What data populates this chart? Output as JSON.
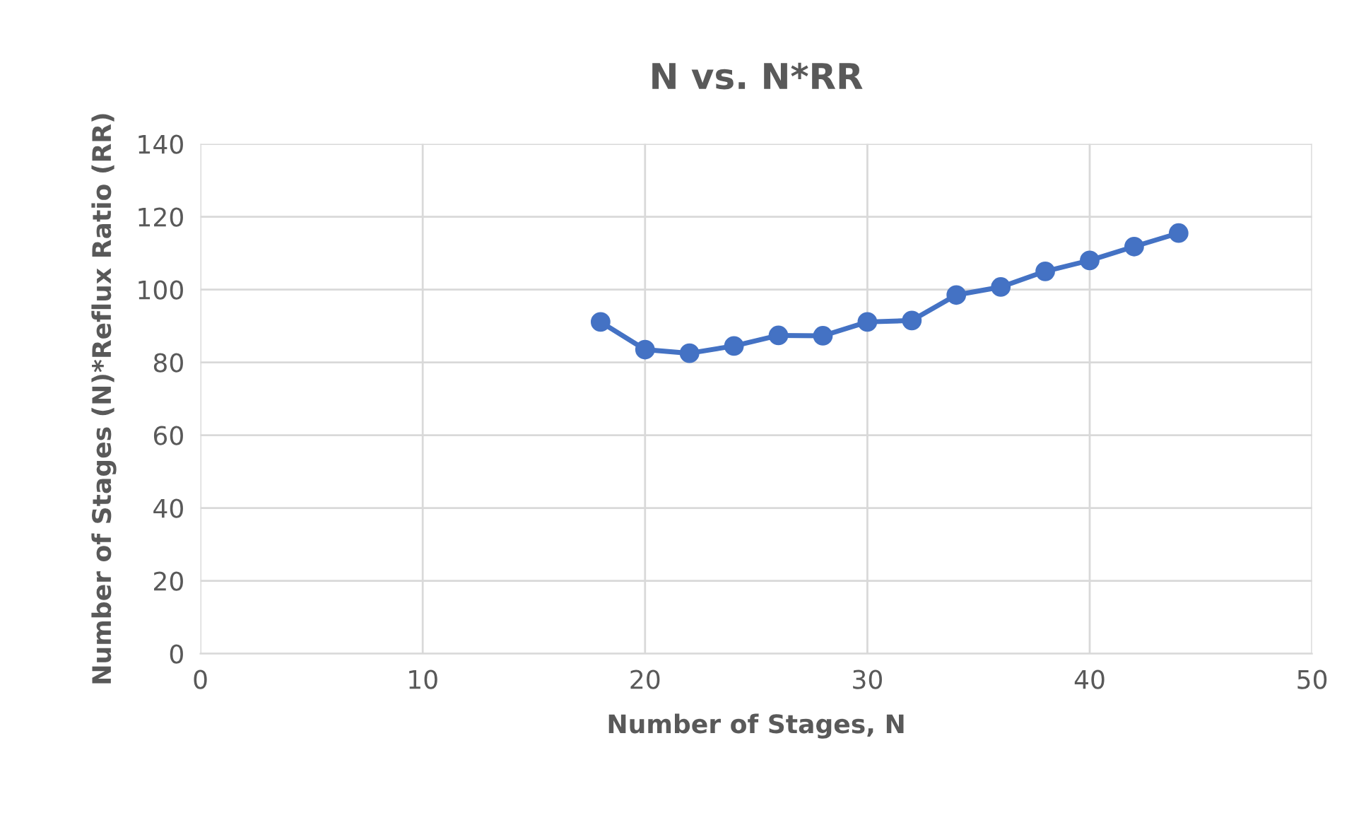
{
  "chart_data": {
    "type": "line",
    "title": "N vs. N*RR",
    "xlabel": "Number of Stages, N",
    "ylabel": "Number of Stages (N)*Reflux Ratio (RR)",
    "x": [
      18,
      20,
      22,
      24,
      26,
      28,
      30,
      32,
      34,
      36,
      38,
      40,
      42,
      44
    ],
    "series": [
      {
        "color": "#4472c4",
        "values": [
          91.1,
          83.5,
          82.5,
          84.5,
          87.4,
          87.3,
          91.1,
          91.5,
          98.5,
          100.7,
          105,
          108,
          111.8,
          115.5
        ]
      }
    ],
    "xlim": [
      0,
      50
    ],
    "xticks": [
      0,
      10,
      20,
      30,
      40,
      50
    ],
    "ylim": [
      0,
      140
    ],
    "yticks": [
      0,
      20,
      40,
      60,
      80,
      100,
      120,
      140
    ],
    "grid": true,
    "marker": "circle",
    "line_style": "solid",
    "legend": false
  }
}
